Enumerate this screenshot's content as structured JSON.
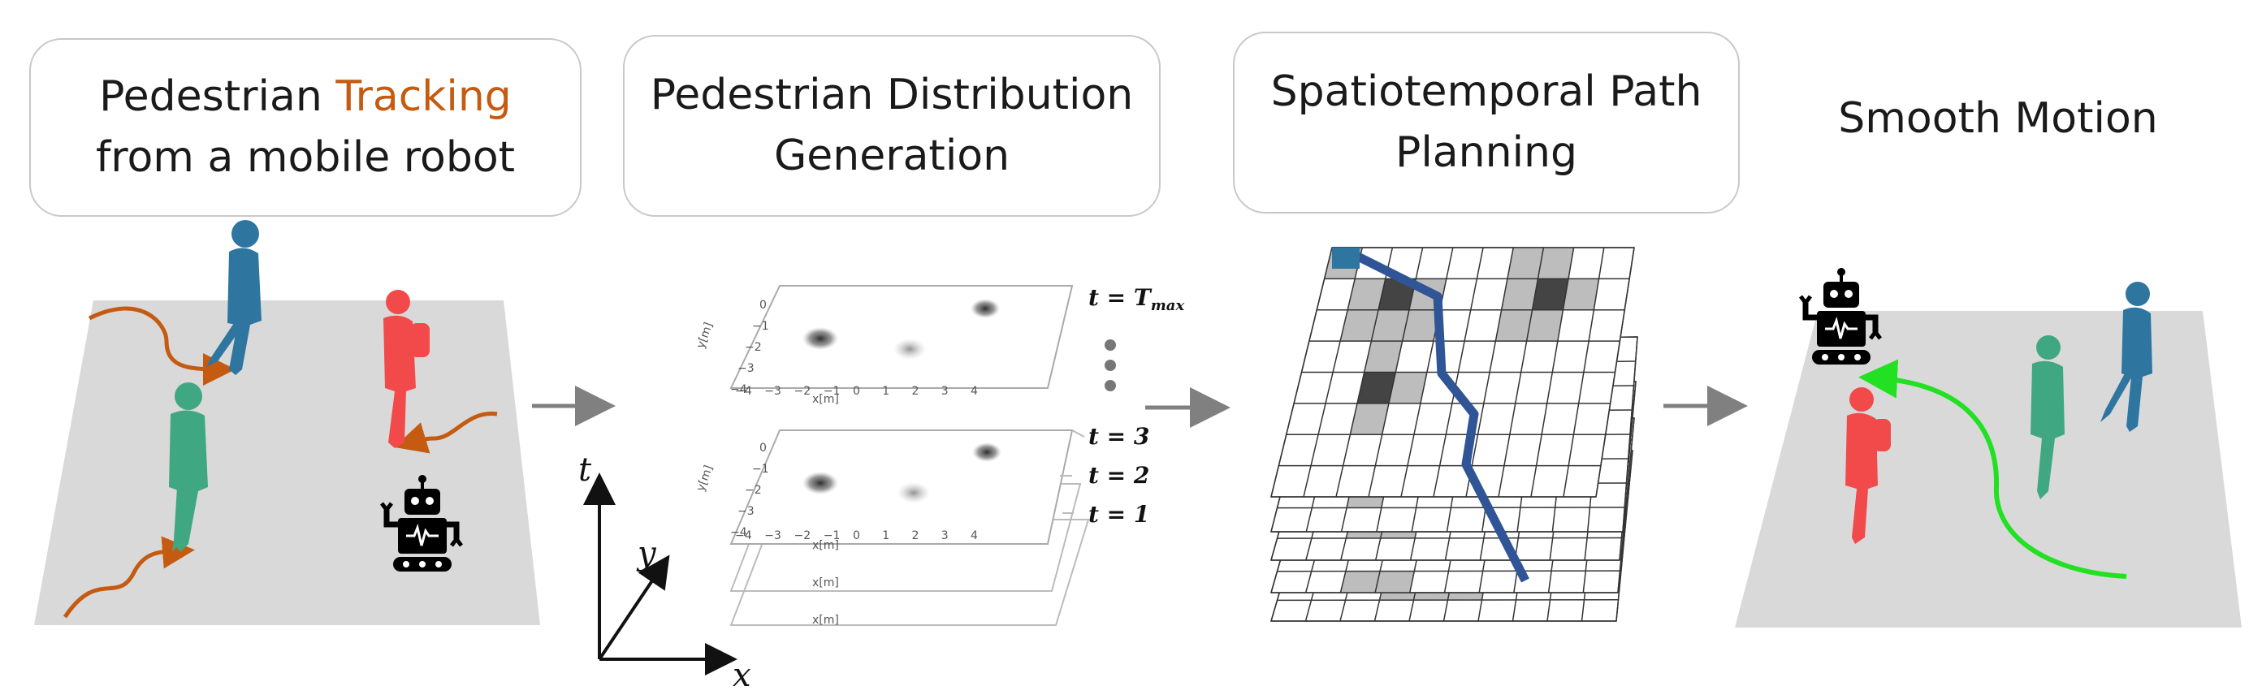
{
  "stages": [
    {
      "line1_pre": "Pedestrian ",
      "line1_accent": "Tracking",
      "line2": "from a mobile robot"
    },
    {
      "line1": "Pedestrian Distribution",
      "line2": "Generation"
    },
    {
      "line1": "Spatiotemporal Path",
      "line2": "Planning"
    },
    {
      "line1": "Smooth Motion"
    }
  ],
  "axes3d": {
    "t": "t",
    "y": "y",
    "x": "x"
  },
  "layer_labels": {
    "tmax_t": "t",
    "tmax_eq": " = ",
    "tmax_T": "T",
    "tmax_sub": "max",
    "t3": "t = 3",
    "t2": "t = 2",
    "t1": "t = 1"
  },
  "plot_axis": {
    "xlabel": "x[m]",
    "ylabel": "y[m]",
    "xticks": [
      "−4",
      "−3",
      "−2",
      "−1",
      "0",
      "1",
      "2",
      "3",
      "4"
    ],
    "yticks": [
      "0",
      "−1",
      "−2",
      "−3",
      "−4"
    ]
  },
  "colors": {
    "accent": "#c55a11",
    "blue_ped": "#2e75a0",
    "green_ped": "#3fa882",
    "red_ped": "#f24a4a",
    "path_blue": "#2f5597",
    "motion_green": "#22e022",
    "floor": "#d9d9d9",
    "arrow": "#808080"
  }
}
